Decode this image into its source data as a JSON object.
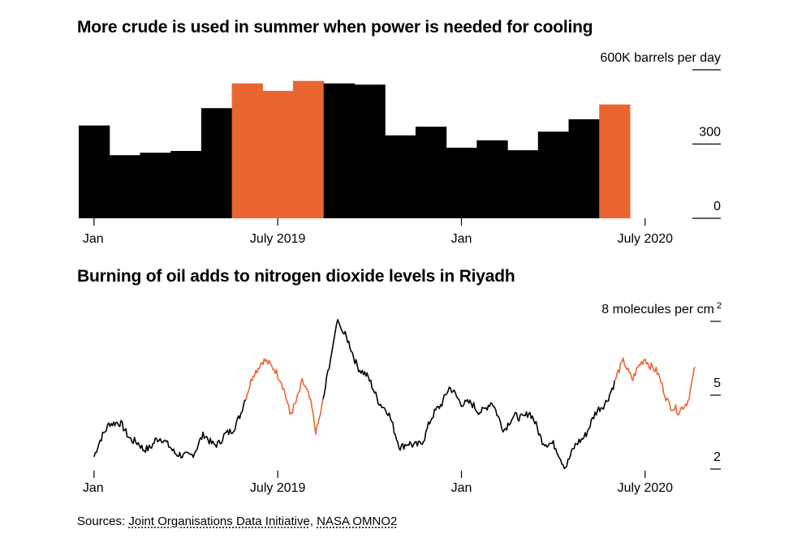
{
  "chart_data": [
    {
      "type": "bar",
      "title": "More crude is used in summer when power is needed for cooling",
      "unit_label": "600K barrels per day",
      "ylim": [
        0,
        600
      ],
      "yticks": [
        {
          "value": 600,
          "label": "600K barrels per day"
        },
        {
          "value": 300,
          "label": "300"
        },
        {
          "value": 0,
          "label": "0"
        }
      ],
      "x_tick_labels": [
        "Jan",
        "July 2019",
        "Jan",
        "July 2020"
      ],
      "categories": [
        "2019-01",
        "2019-02",
        "2019-03",
        "2019-04",
        "2019-05",
        "2019-06",
        "2019-07",
        "2019-08",
        "2019-09",
        "2019-10",
        "2019-11",
        "2019-12",
        "2020-01",
        "2020-02",
        "2020-03",
        "2020-04",
        "2020-05",
        "2020-06"
      ],
      "values": [
        375,
        255,
        265,
        272,
        445,
        545,
        515,
        555,
        545,
        540,
        335,
        370,
        285,
        315,
        275,
        350,
        400,
        460
      ],
      "highlight": [
        false,
        false,
        false,
        false,
        false,
        true,
        true,
        true,
        false,
        false,
        false,
        false,
        false,
        false,
        false,
        false,
        false,
        true
      ],
      "colors": {
        "base": "#000000",
        "highlight": "#ea6631"
      },
      "grid": false
    },
    {
      "type": "line",
      "title": "Burning of oil adds to nitrogen dioxide levels in Riyadh",
      "unit_label": "8 molecules per cm",
      "unit_superscript": "2",
      "ylim": [
        2,
        8
      ],
      "yticks": [
        {
          "value": 8,
          "label": "8 molecules per cm"
        },
        {
          "value": 5,
          "label": "5"
        },
        {
          "value": 2,
          "label": "2"
        }
      ],
      "x_tick_labels": [
        "Jan",
        "July 2019",
        "Jan",
        "July 2020"
      ],
      "x_range_months": [
        0,
        18
      ],
      "keypoints": [
        [
          0.0,
          2.5
        ],
        [
          0.15,
          2.9
        ],
        [
          0.5,
          4.0
        ],
        [
          0.9,
          3.7
        ],
        [
          1.3,
          3.2
        ],
        [
          1.6,
          2.7
        ],
        [
          2.0,
          3.2
        ],
        [
          2.5,
          3.0
        ],
        [
          2.7,
          2.6
        ],
        [
          2.9,
          2.4
        ],
        [
          3.3,
          2.8
        ],
        [
          3.6,
          3.3
        ],
        [
          4.1,
          3.0
        ],
        [
          4.4,
          3.5
        ],
        [
          4.8,
          4.2
        ],
        [
          5.0,
          5.0
        ],
        [
          5.2,
          6.0
        ],
        [
          5.5,
          6.3
        ],
        [
          5.9,
          6.2
        ],
        [
          6.1,
          5.6
        ],
        [
          6.4,
          4.2
        ],
        [
          6.8,
          5.5
        ],
        [
          7.1,
          4.6
        ],
        [
          7.25,
          3.6
        ],
        [
          7.5,
          4.8
        ],
        [
          7.95,
          8.1
        ],
        [
          8.1,
          7.6
        ],
        [
          8.6,
          6.3
        ],
        [
          9.1,
          5.3
        ],
        [
          9.6,
          4.2
        ],
        [
          10.0,
          3.0
        ],
        [
          10.4,
          2.9
        ],
        [
          10.8,
          3.3
        ],
        [
          11.2,
          4.5
        ],
        [
          11.6,
          5.2
        ],
        [
          12.0,
          4.8
        ],
        [
          12.5,
          4.4
        ],
        [
          13.0,
          4.6
        ],
        [
          13.4,
          3.7
        ],
        [
          13.8,
          4.1
        ],
        [
          14.2,
          4.3
        ],
        [
          14.6,
          3.3
        ],
        [
          15.0,
          2.9
        ],
        [
          15.4,
          2.2
        ],
        [
          15.8,
          3.0
        ],
        [
          16.2,
          3.8
        ],
        [
          16.6,
          4.6
        ],
        [
          17.0,
          5.4
        ],
        [
          17.3,
          6.5
        ],
        [
          17.6,
          5.6
        ],
        [
          18.0,
          6.6
        ],
        [
          18.4,
          5.8
        ],
        [
          18.8,
          4.7
        ],
        [
          19.1,
          4.2
        ],
        [
          19.4,
          4.9
        ],
        [
          19.65,
          6.2
        ]
      ],
      "highlight_ranges": [
        [
          5.0,
          7.5
        ],
        [
          17.0,
          19.65
        ]
      ],
      "colors": {
        "base": "#000000",
        "highlight": "#ea6631"
      },
      "grid": false
    }
  ],
  "sources": {
    "prefix": "Sources:",
    "links": [
      "Joint Organisations Data Initiative",
      "NASA OMNO2"
    ],
    "separator": ","
  }
}
